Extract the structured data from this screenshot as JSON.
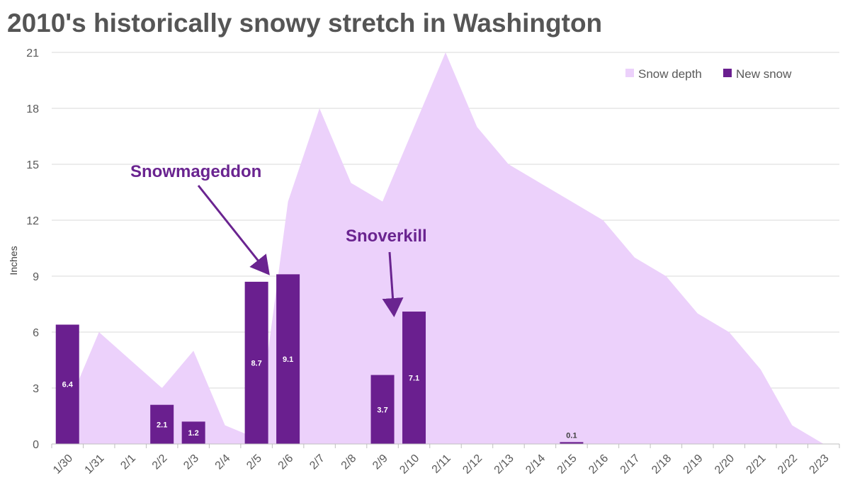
{
  "chart_data": {
    "type": "bar+area",
    "title": "2010's historically snowy stretch in Washington",
    "xlabel": "",
    "ylabel": "Inches",
    "ylim": [
      0,
      21
    ],
    "yticks": [
      0,
      3,
      6,
      9,
      12,
      15,
      18,
      21
    ],
    "grid": true,
    "legend_position": "top-right",
    "categories": [
      "1/30",
      "1/31",
      "2/1",
      "2/2",
      "2/3",
      "2/4",
      "2/5",
      "2/6",
      "2/7",
      "2/8",
      "2/9",
      "2/10",
      "2/11",
      "2/12",
      "2/13",
      "2/14",
      "2/15",
      "2/16",
      "2/17",
      "2/18",
      "2/19",
      "2/20",
      "2/21",
      "2/22",
      "2/23"
    ],
    "series": [
      {
        "name": "Snow depth",
        "type": "area",
        "color": "#ecd1fb",
        "points": [
          {
            "x": 0.0,
            "y": 2
          },
          {
            "x": 1.0,
            "y": 6
          },
          {
            "x": 2.0,
            "y": 4.5
          },
          {
            "x": 3.0,
            "y": 3
          },
          {
            "x": 4.0,
            "y": 5
          },
          {
            "x": 5.0,
            "y": 1
          },
          {
            "x": 6.0,
            "y": 0.3
          },
          {
            "x": 7.0,
            "y": 13
          },
          {
            "x": 8.0,
            "y": 18
          },
          {
            "x": 9.0,
            "y": 14
          },
          {
            "x": 10.0,
            "y": 13
          },
          {
            "x": 11.0,
            "y": 17
          },
          {
            "x": 12.0,
            "y": 21
          },
          {
            "x": 13.0,
            "y": 17
          },
          {
            "x": 14.0,
            "y": 15
          },
          {
            "x": 15.0,
            "y": 14
          },
          {
            "x": 16.0,
            "y": 13
          },
          {
            "x": 17.0,
            "y": 12
          },
          {
            "x": 18.0,
            "y": 10
          },
          {
            "x": 19.0,
            "y": 9
          },
          {
            "x": 20.0,
            "y": 7
          },
          {
            "x": 21.0,
            "y": 6
          },
          {
            "x": 22.0,
            "y": 4
          },
          {
            "x": 23.0,
            "y": 1
          },
          {
            "x": 24.0,
            "y": 0
          }
        ]
      },
      {
        "name": "New snow",
        "type": "bar",
        "color": "#6a1f8f",
        "bars": [
          {
            "category": "1/30",
            "value": 6.4,
            "label": "6.4"
          },
          {
            "category": "2/2",
            "value": 2.1,
            "label": "2.1"
          },
          {
            "category": "2/3",
            "value": 1.2,
            "label": "1.2"
          },
          {
            "category": "2/5",
            "value": 8.7,
            "label": "8.7"
          },
          {
            "category": "2/6",
            "value": 9.1,
            "label": "9.1"
          },
          {
            "category": "2/9",
            "value": 3.7,
            "label": "3.7"
          },
          {
            "category": "2/10",
            "value": 7.1,
            "label": "7.1"
          },
          {
            "category": "2/15",
            "value": 0.1,
            "label": "0.1"
          }
        ]
      }
    ],
    "annotations": [
      {
        "text": "Snowmageddon",
        "points_to": "2/5"
      },
      {
        "text": "Snoverkill",
        "points_to": "2/10"
      }
    ]
  }
}
